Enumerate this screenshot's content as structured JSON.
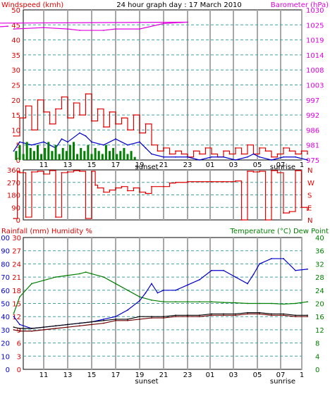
{
  "colors": {
    "red": "#e00000",
    "blue": "#0000cc",
    "green": "#008000",
    "magenta": "#e000e0",
    "black": "#000000",
    "darkred": "#700000",
    "grid_h": "#44a0a0",
    "grid_v": "#a8a8a8"
  },
  "chart_data": [
    {
      "type": "line",
      "title": "24 hour graph day : 17 March 2010",
      "left_axis_label": "Windspeed (kmh)",
      "right_axis_label": "Barometer (hPa)",
      "x_tick_labels": [
        "11",
        "13",
        "15",
        "17",
        "19",
        "21",
        "23",
        "01",
        "03",
        "05",
        "07",
        "1"
      ],
      "x_markers": [
        "sunset",
        "sunrise"
      ],
      "y_left_ticks": [
        "0",
        "5",
        "10",
        "15",
        "20",
        "25",
        "30",
        "35",
        "40",
        "45",
        "50"
      ],
      "y_right_ticks": [
        "975",
        "981",
        "986",
        "992",
        "997",
        "1003",
        "1008",
        "1014",
        "1019",
        "1025",
        "1030"
      ],
      "left_range": [
        0,
        50
      ],
      "right_range": [
        975,
        1030
      ],
      "series": [
        {
          "name": "",
          "color": "magenta",
          "axis": "right",
          "x": [
            8.5,
            11,
            13,
            14,
            16,
            17,
            19,
            21,
            23,
            1,
            3,
            5,
            6,
            8
          ],
          "y": [
            1023,
            1023.5,
            1023,
            1022.5,
            1022.5,
            1023,
            1023,
            1025,
            1025.5,
            1025,
            1024.5,
            1023.5,
            1023.5,
            1024
          ]
        },
        {
          "name": "",
          "color": "red",
          "axis": "left",
          "style": "step",
          "x": [
            8.5,
            9,
            9.5,
            10,
            10.5,
            11,
            11.5,
            12,
            12.5,
            13,
            13.5,
            14,
            14.5,
            15,
            15.5,
            16,
            16.5,
            17,
            17.5,
            18,
            18.5,
            19,
            19.5,
            20,
            20.5,
            21,
            21.5,
            22,
            22.5,
            23,
            23.5,
            24,
            24.5,
            25,
            25.5,
            26,
            26.5,
            27,
            27.5,
            28,
            28.5,
            29,
            29.5,
            30,
            30.5,
            31,
            31.5,
            32,
            32.5,
            33
          ],
          "y": [
            8,
            14,
            18,
            10,
            20,
            16,
            12,
            17,
            21,
            14,
            19,
            15,
            22,
            13,
            17,
            11,
            16,
            12,
            14,
            10,
            15,
            9,
            12,
            5,
            3,
            4,
            2,
            3,
            2,
            1,
            3,
            2,
            4,
            2,
            1,
            3,
            2,
            4,
            2,
            5,
            2,
            4,
            3,
            1,
            2,
            4,
            3,
            2,
            3,
            2
          ]
        },
        {
          "name": "",
          "color": "blue",
          "axis": "left",
          "x": [
            8.5,
            9,
            10,
            11,
            12,
            12.5,
            13,
            14,
            14.5,
            15,
            16,
            17,
            18,
            19,
            19.5,
            20,
            21,
            22,
            23,
            24,
            25,
            26,
            27,
            28,
            28.5,
            29,
            30,
            31,
            32,
            33
          ],
          "y": [
            3,
            6,
            5,
            6,
            4,
            7,
            6,
            9,
            8,
            6,
            5,
            7,
            5,
            6,
            4,
            2,
            1,
            1,
            1,
            0,
            1,
            1,
            0,
            1,
            2,
            1,
            0,
            1,
            1,
            0
          ]
        },
        {
          "name": "",
          "color": "green",
          "axis": "left",
          "style": "bars",
          "x": [
            8.7,
            9,
            9.3,
            9.6,
            9.9,
            10.2,
            10.5,
            10.8,
            11.1,
            11.4,
            11.7,
            12,
            12.3,
            12.6,
            12.9,
            13.2,
            13.5,
            13.8,
            14.1,
            14.4,
            14.7,
            15,
            15.3,
            15.6,
            15.9,
            16.2,
            16.5,
            16.8,
            17.1,
            17.4,
            17.7,
            18,
            18.3,
            18.6
          ],
          "y": [
            3,
            5,
            2,
            6,
            4,
            3,
            5,
            2,
            4,
            6,
            3,
            5,
            2,
            4,
            3,
            5,
            6,
            2,
            4,
            3,
            5,
            2,
            4,
            3,
            2,
            5,
            3,
            4,
            2,
            3,
            4,
            2,
            3,
            1
          ]
        }
      ]
    },
    {
      "type": "line",
      "y_left_ticks": [
        "0",
        "90",
        "180",
        "270",
        "360"
      ],
      "y_right_ticks": [
        "N",
        "E",
        "S",
        "W",
        "N"
      ],
      "left_range": [
        0,
        360
      ],
      "series": [
        {
          "name": "",
          "color": "red",
          "style": "step",
          "x": [
            8.5,
            8.8,
            9,
            9.5,
            10,
            10.5,
            11,
            11.5,
            12,
            12.5,
            13,
            13.5,
            14,
            14.5,
            15,
            15.3,
            15.5,
            16,
            16.5,
            17,
            17.5,
            18,
            18.5,
            19,
            19.5,
            20,
            21,
            21.5,
            22,
            23,
            24,
            25,
            26,
            27,
            27.5,
            28,
            28.5,
            29,
            29.5,
            30,
            30.5,
            31,
            31.5,
            32,
            32.5,
            33
          ],
          "y": [
            10,
            350,
            340,
            20,
            345,
            350,
            330,
            355,
            20,
            340,
            345,
            355,
            350,
            10,
            350,
            250,
            230,
            200,
            215,
            230,
            240,
            210,
            230,
            200,
            190,
            240,
            240,
            265,
            270,
            275,
            275,
            275,
            275,
            280,
            0,
            350,
            345,
            350,
            0,
            355,
            340,
            50,
            60,
            355,
            90,
            70
          ]
        }
      ]
    },
    {
      "type": "line",
      "left_axis_label": "Rainfall (mm)  Humidity %",
      "right_axis_label": "Temperature (°C) Dew Point",
      "x_tick_labels": [
        "11",
        "13",
        "15",
        "17",
        "19",
        "21",
        "23",
        "01",
        "03",
        "05",
        "07",
        "1"
      ],
      "x_markers": [
        "sunset",
        "sunrise"
      ],
      "y_left_ticks": [
        "0",
        "10",
        "20",
        "30",
        "40",
        "50",
        "60",
        "70",
        "80",
        "90",
        "100"
      ],
      "y_rain_ticks": [
        "0",
        "3",
        "6",
        "9",
        "12",
        "15",
        "18",
        "21",
        "24",
        "27",
        "30"
      ],
      "y_right_ticks": [
        "0",
        "4",
        "8",
        "12",
        "16",
        "20",
        "24",
        "28",
        "32",
        "36",
        "40"
      ],
      "left_range": [
        0,
        100
      ],
      "right_range": [
        0,
        40
      ],
      "series": [
        {
          "name": "",
          "color": "green",
          "axis": "right",
          "x": [
            8.5,
            9,
            10,
            11,
            12,
            13,
            14,
            14.5,
            15,
            16,
            17,
            18,
            19,
            20,
            21,
            22,
            23,
            24,
            25,
            26,
            27,
            28,
            29,
            30,
            31,
            32,
            33
          ],
          "y": [
            17,
            22,
            26,
            27,
            28,
            28.5,
            29,
            29.5,
            29,
            28,
            26,
            24,
            22,
            21,
            20.5,
            20.5,
            20.5,
            20.5,
            20.5,
            20.3,
            20.2,
            20,
            20,
            20,
            19.8,
            20,
            20.5
          ]
        },
        {
          "name": "",
          "color": "blue",
          "axis": "left",
          "x": [
            8.5,
            9,
            10,
            11,
            12,
            13,
            14,
            15,
            16,
            17,
            18,
            19,
            19.5,
            20,
            20.5,
            21,
            22,
            23,
            24,
            25,
            26,
            27,
            28,
            28.5,
            29,
            30,
            31,
            32,
            33
          ],
          "y": [
            40,
            34,
            31,
            32,
            33,
            34,
            35,
            36,
            38,
            40,
            45,
            52,
            58,
            65,
            58,
            60,
            60,
            64,
            68,
            75,
            75,
            70,
            65,
            72,
            80,
            84,
            84,
            75,
            76
          ]
        },
        {
          "name": "",
          "color": "black",
          "axis": "left",
          "x": [
            8.5,
            9,
            10,
            11,
            12,
            13,
            14,
            15,
            16,
            17,
            18,
            19,
            20,
            21,
            22,
            23,
            24,
            25,
            26,
            27,
            28,
            29,
            30,
            31,
            32,
            33
          ],
          "y": [
            32,
            31,
            31,
            32,
            33,
            34,
            35,
            36,
            37,
            38,
            38,
            40,
            40,
            40,
            41,
            41,
            41,
            42,
            42,
            42,
            43,
            43,
            42,
            42,
            41,
            41
          ]
        },
        {
          "name": "",
          "color": "darkred",
          "axis": "left",
          "x": [
            8.5,
            9,
            10,
            11,
            12,
            13,
            14,
            15,
            16,
            17,
            18,
            19,
            20,
            21,
            22,
            23,
            24,
            25,
            26,
            27,
            28,
            29,
            30,
            31,
            32,
            33
          ],
          "y": [
            30,
            29,
            29,
            30,
            31,
            32,
            33,
            34,
            35,
            37,
            37,
            38,
            39,
            39,
            40,
            40,
            40,
            41,
            41,
            41,
            42,
            42,
            41,
            41,
            40,
            40
          ]
        }
      ]
    }
  ]
}
